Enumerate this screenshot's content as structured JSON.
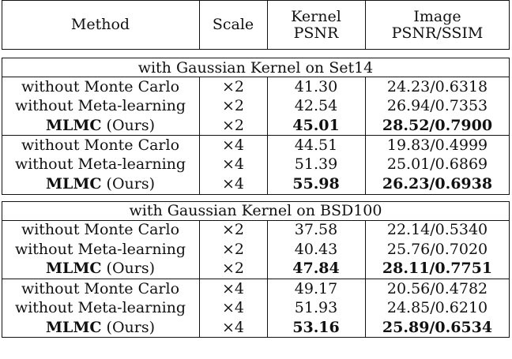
{
  "header": {
    "method": "Method",
    "scale": "Scale",
    "kernel_psnr_line1": "Kernel",
    "kernel_psnr_line2": "PSNR",
    "image_line1": "Image",
    "image_line2": "PSNR/SSIM"
  },
  "sections": [
    {
      "title": "with Gaussian Kernel on Set14",
      "groups": [
        [
          {
            "method": "without Monte Carlo",
            "scale": "×2",
            "kernel": "41.30",
            "image": "24.23/0.6318"
          },
          {
            "method": "without Meta-learning",
            "scale": "×2",
            "kernel": "42.54",
            "image": "26.94/0.7353"
          },
          {
            "method_bold": "MLMC",
            "method_rest": " (Ours)",
            "scale": "×2",
            "kernel": "45.01",
            "image": "28.52/0.7900"
          }
        ],
        [
          {
            "method": "without Monte Carlo",
            "scale": "×4",
            "kernel": "44.51",
            "image": "19.83/0.4999"
          },
          {
            "method": "without Meta-learning",
            "scale": "×4",
            "kernel": "51.39",
            "image": "25.01/0.6869"
          },
          {
            "method_bold": "MLMC",
            "method_rest": " (Ours)",
            "scale": "×4",
            "kernel": "55.98",
            "image": "26.23/0.6938"
          }
        ]
      ]
    },
    {
      "title": "with Gaussian Kernel on BSD100",
      "groups": [
        [
          {
            "method": "without Monte Carlo",
            "scale": "×2",
            "kernel": "37.58",
            "image": "22.14/0.5340"
          },
          {
            "method": "without Meta-learning",
            "scale": "×2",
            "kernel": "40.43",
            "image": "25.76/0.7020"
          },
          {
            "method_bold": "MLMC",
            "method_rest": " (Ours)",
            "scale": "×2",
            "kernel": "47.84",
            "image": "28.11/0.7751"
          }
        ],
        [
          {
            "method": "without Monte Carlo",
            "scale": "×4",
            "kernel": "49.17",
            "image": "20.56/0.4782"
          },
          {
            "method": "without Meta-learning",
            "scale": "×4",
            "kernel": "51.93",
            "image": "24.85/0.6210"
          },
          {
            "method_bold": "MLMC",
            "method_rest": " (Ours)",
            "scale": "×4",
            "kernel": "53.16",
            "image": "25.89/0.6534"
          }
        ]
      ]
    }
  ]
}
